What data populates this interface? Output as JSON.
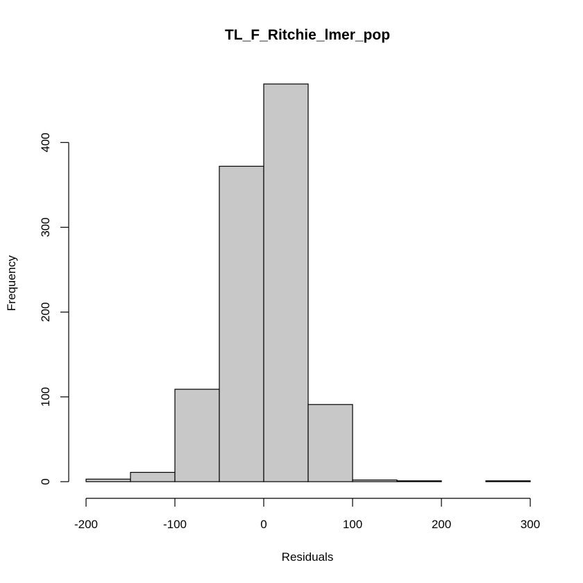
{
  "chart_data": {
    "type": "bar",
    "title": "TL_F_Ritchie_lmer_pop",
    "xlabel": "Residuals",
    "ylabel": "Frequency",
    "bin_edges": [
      -200,
      -150,
      -100,
      -50,
      0,
      50,
      100,
      150,
      200,
      250,
      300
    ],
    "values": [
      3,
      11,
      109,
      372,
      469,
      91,
      2,
      1,
      0,
      1
    ],
    "xlim": [
      -200,
      300
    ],
    "ylim": [
      0,
      469
    ],
    "x_ticks": [
      -200,
      -100,
      0,
      100,
      200,
      300
    ],
    "x_tick_labels": [
      "-200",
      "-100",
      "0",
      "100",
      "200",
      "300"
    ],
    "y_ticks": [
      0,
      100,
      200,
      300,
      400
    ],
    "y_tick_labels": [
      "0",
      "100",
      "200",
      "300",
      "400"
    ],
    "bar_color": "#c8c8c8",
    "grid": false,
    "legend": "none"
  }
}
